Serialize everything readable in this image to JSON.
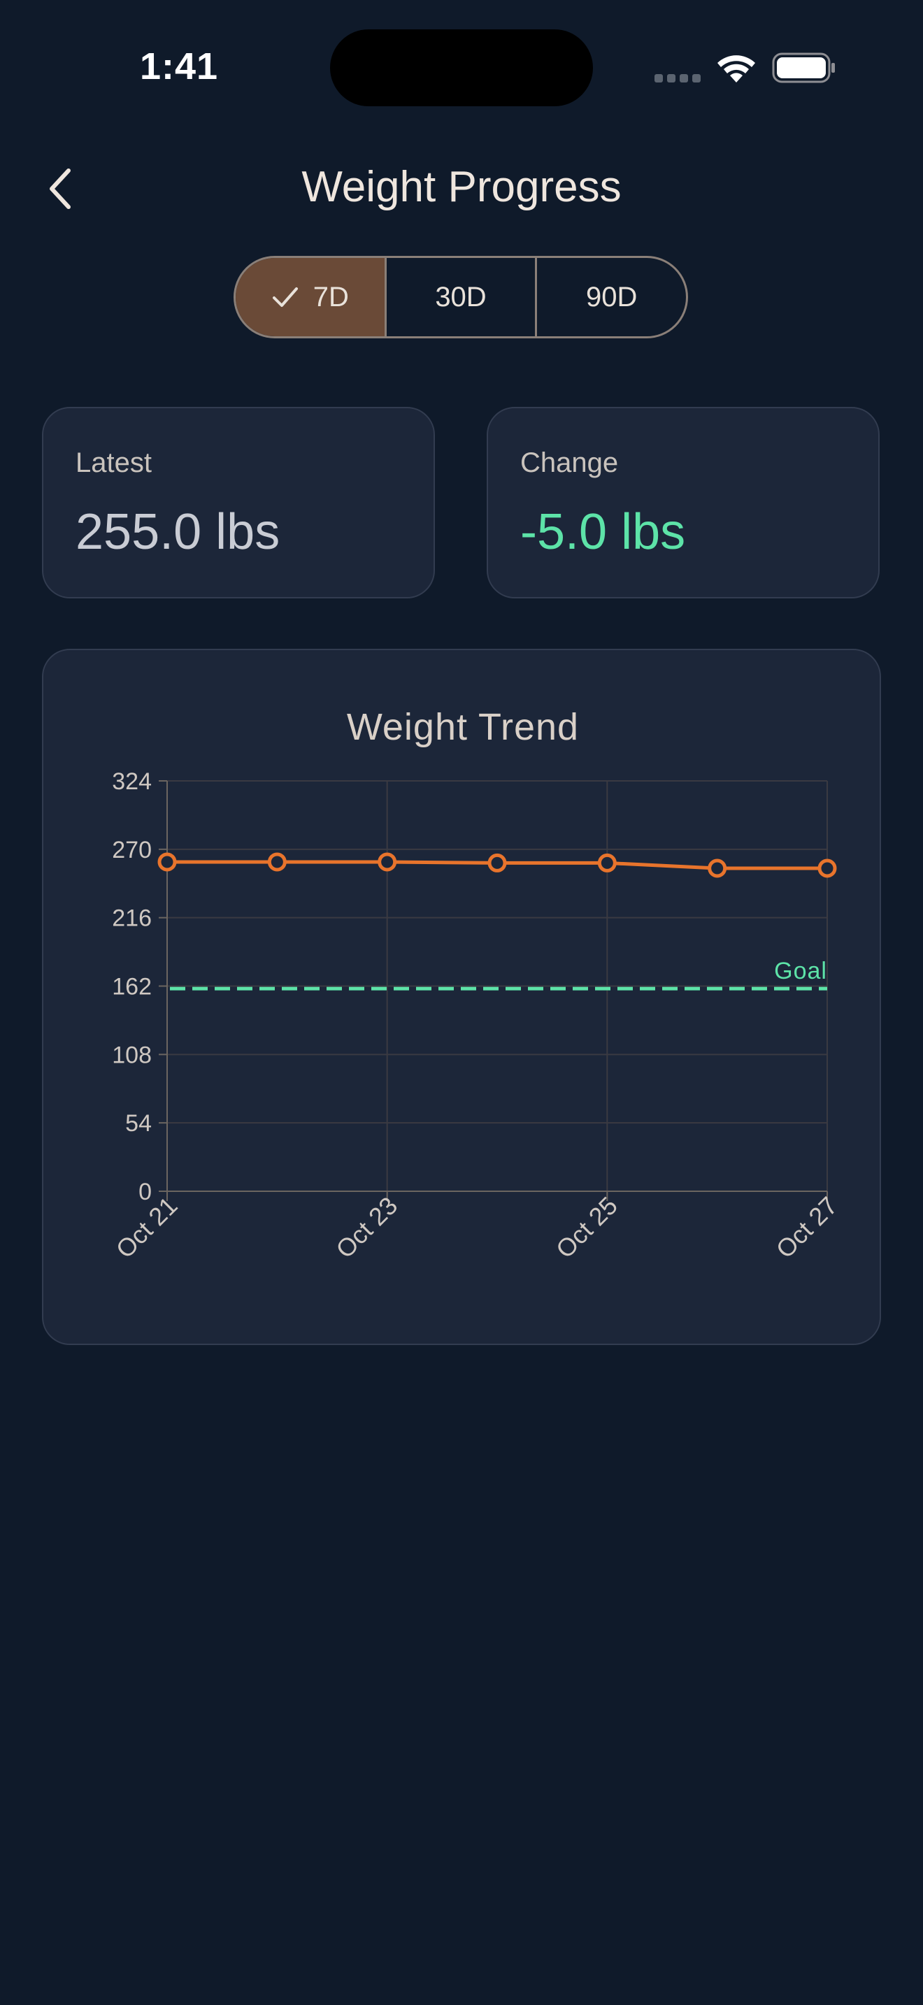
{
  "status_bar": {
    "time": "1:41"
  },
  "header": {
    "title": "Weight Progress",
    "back_icon": "chevron-left-icon"
  },
  "range_selector": {
    "options": [
      {
        "label": "7D",
        "selected": true
      },
      {
        "label": "30D",
        "selected": false
      },
      {
        "label": "90D",
        "selected": false
      }
    ],
    "selected_icon": "checkmark-icon",
    "selected_color": "#6a4a37"
  },
  "stats": {
    "latest": {
      "label": "Latest",
      "value": "255.0 lbs"
    },
    "change": {
      "label": "Change",
      "value": "-5.0 lbs",
      "color": "#5de3a8"
    }
  },
  "colors": {
    "background": "#0f1a2a",
    "card": "#1c2639",
    "line": "#e8742c",
    "goal": "#5de3a8"
  },
  "chart_data": {
    "type": "line",
    "title": "Weight Trend",
    "x": [
      "Oct 21",
      "Oct 22",
      "Oct 23",
      "Oct 24",
      "Oct 25",
      "Oct 26",
      "Oct 27"
    ],
    "x_tick_labels": [
      "Oct 21",
      "Oct 23",
      "Oct 25",
      "Oct 27"
    ],
    "series": [
      {
        "values": [
          260,
          260,
          260,
          259.2,
          259.2,
          255,
          255
        ]
      }
    ],
    "ylim": [
      0,
      324
    ],
    "y_ticks": [
      0,
      54,
      108,
      162,
      216,
      270,
      324
    ],
    "goal": {
      "label": "Goal",
      "value": 160
    },
    "grid": true,
    "xlabel": "",
    "ylabel": ""
  }
}
